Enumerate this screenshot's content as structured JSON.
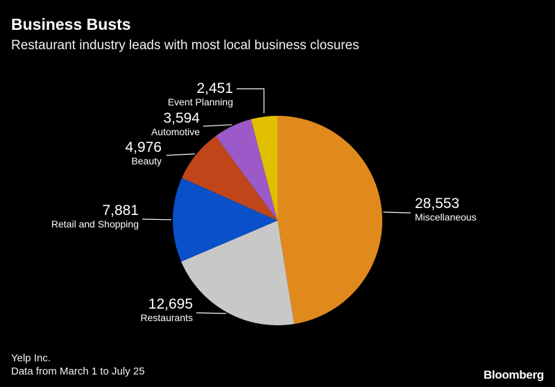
{
  "chart_data": {
    "type": "pie",
    "title": "Business Busts",
    "subtitle": "Restaurant industry leads with most local business closures",
    "slices": [
      {
        "label": "Miscellaneous",
        "value": 28553,
        "value_label": "28,553",
        "color": "#e08a1e"
      },
      {
        "label": "Restaurants",
        "value": 12695,
        "value_label": "12,695",
        "color": "#c8c8c8"
      },
      {
        "label": "Retail and Shopping",
        "value": 7881,
        "value_label": "7,881",
        "color": "#0a50c8"
      },
      {
        "label": "Beauty",
        "value": 4976,
        "value_label": "4,976",
        "color": "#c0461a"
      },
      {
        "label": "Automotive",
        "value": 3594,
        "value_label": "3,594",
        "color": "#9b5ac8"
      },
      {
        "label": "Event Planning",
        "value": 2451,
        "value_label": "2,451",
        "color": "#e0be00"
      }
    ]
  },
  "footer": {
    "source": "Yelp Inc.",
    "note": "Data from March 1 to July 25",
    "brand": "Bloomberg"
  }
}
